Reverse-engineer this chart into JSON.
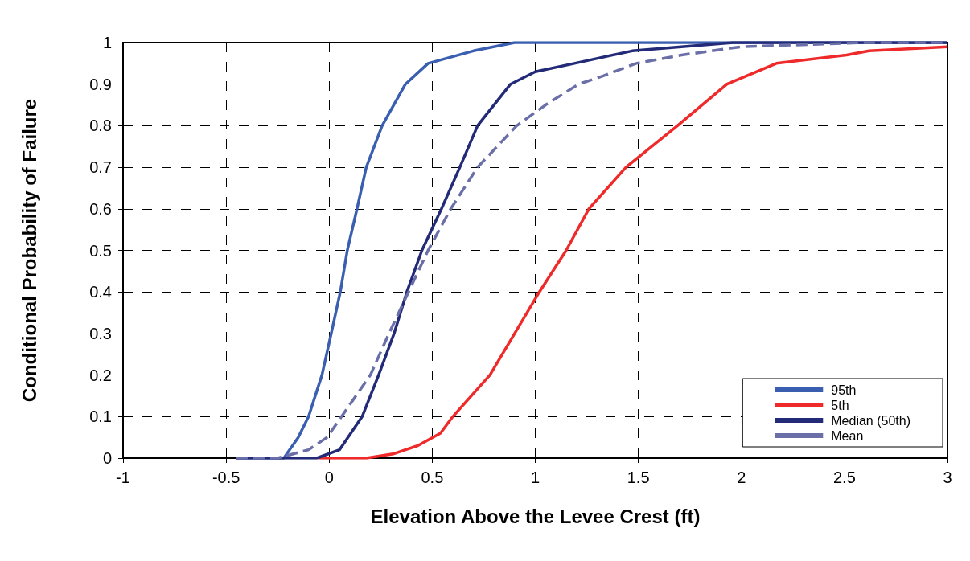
{
  "chart_data": {
    "type": "line",
    "xlabel": "Elevation Above the Levee Crest (ft)",
    "ylabel": "Conditional Probability of Failure",
    "xlim": [
      -1,
      3
    ],
    "xticks": [
      -1,
      -0.5,
      0,
      0.5,
      1,
      1.5,
      2,
      2.5,
      3
    ],
    "ylim": [
      0,
      1
    ],
    "yticks": [
      0,
      0.1,
      0.2,
      0.3,
      0.4,
      0.5,
      0.6,
      0.7,
      0.8,
      0.9,
      1
    ],
    "grid": true,
    "legend": "bottom right",
    "marker": "none",
    "series": [
      {
        "name": "95th",
        "color": "#3a5fb0",
        "line_style": "solid",
        "x": [
          -0.45,
          -0.22,
          -0.15,
          -0.1,
          -0.035,
          0.01,
          0.054,
          0.088,
          0.135,
          0.18,
          0.257,
          0.37,
          0.48,
          0.7,
          0.9,
          3
        ],
        "values": [
          0,
          0,
          0.05,
          0.1,
          0.2,
          0.3,
          0.4,
          0.5,
          0.6,
          0.7,
          0.8,
          0.9,
          0.95,
          0.98,
          1,
          1
        ]
      },
      {
        "name": "5th",
        "color": "#ee2a2a",
        "line_style": "solid",
        "x": [
          -0.05,
          0.18,
          0.31,
          0.43,
          0.54,
          0.6,
          0.78,
          0.9,
          1.02,
          1.15,
          1.26,
          1.44,
          1.69,
          1.93,
          2.17,
          2.51,
          2.62,
          3
        ],
        "values": [
          0,
          0,
          0.01,
          0.03,
          0.06,
          0.1,
          0.2,
          0.3,
          0.4,
          0.5,
          0.6,
          0.7,
          0.8,
          0.9,
          0.95,
          0.97,
          0.98,
          0.99
        ]
      },
      {
        "name": "Median (50th)",
        "color": "#232a78",
        "line_style": "solid",
        "x": [
          -0.45,
          -0.06,
          0.05,
          0.16,
          0.24,
          0.315,
          0.377,
          0.45,
          0.545,
          0.634,
          0.72,
          0.88,
          1.0,
          1.19,
          1.47,
          1.96,
          3
        ],
        "values": [
          0,
          0,
          0.02,
          0.1,
          0.2,
          0.3,
          0.4,
          0.5,
          0.6,
          0.7,
          0.8,
          0.9,
          0.93,
          0.95,
          0.98,
          1,
          1
        ]
      },
      {
        "name": "Mean",
        "color": "#6b6fa8",
        "line_style": "dashed",
        "x": [
          -0.45,
          -0.25,
          -0.1,
          -0.01,
          0.06,
          0.2,
          0.29,
          0.385,
          0.48,
          0.59,
          0.72,
          0.91,
          1.05,
          1.21,
          1.33,
          1.49,
          1.71,
          2.0,
          2.6,
          3
        ],
        "values": [
          0,
          0,
          0.02,
          0.05,
          0.1,
          0.2,
          0.3,
          0.4,
          0.5,
          0.6,
          0.7,
          0.8,
          0.85,
          0.9,
          0.92,
          0.95,
          0.97,
          0.99,
          1,
          1
        ]
      }
    ]
  }
}
